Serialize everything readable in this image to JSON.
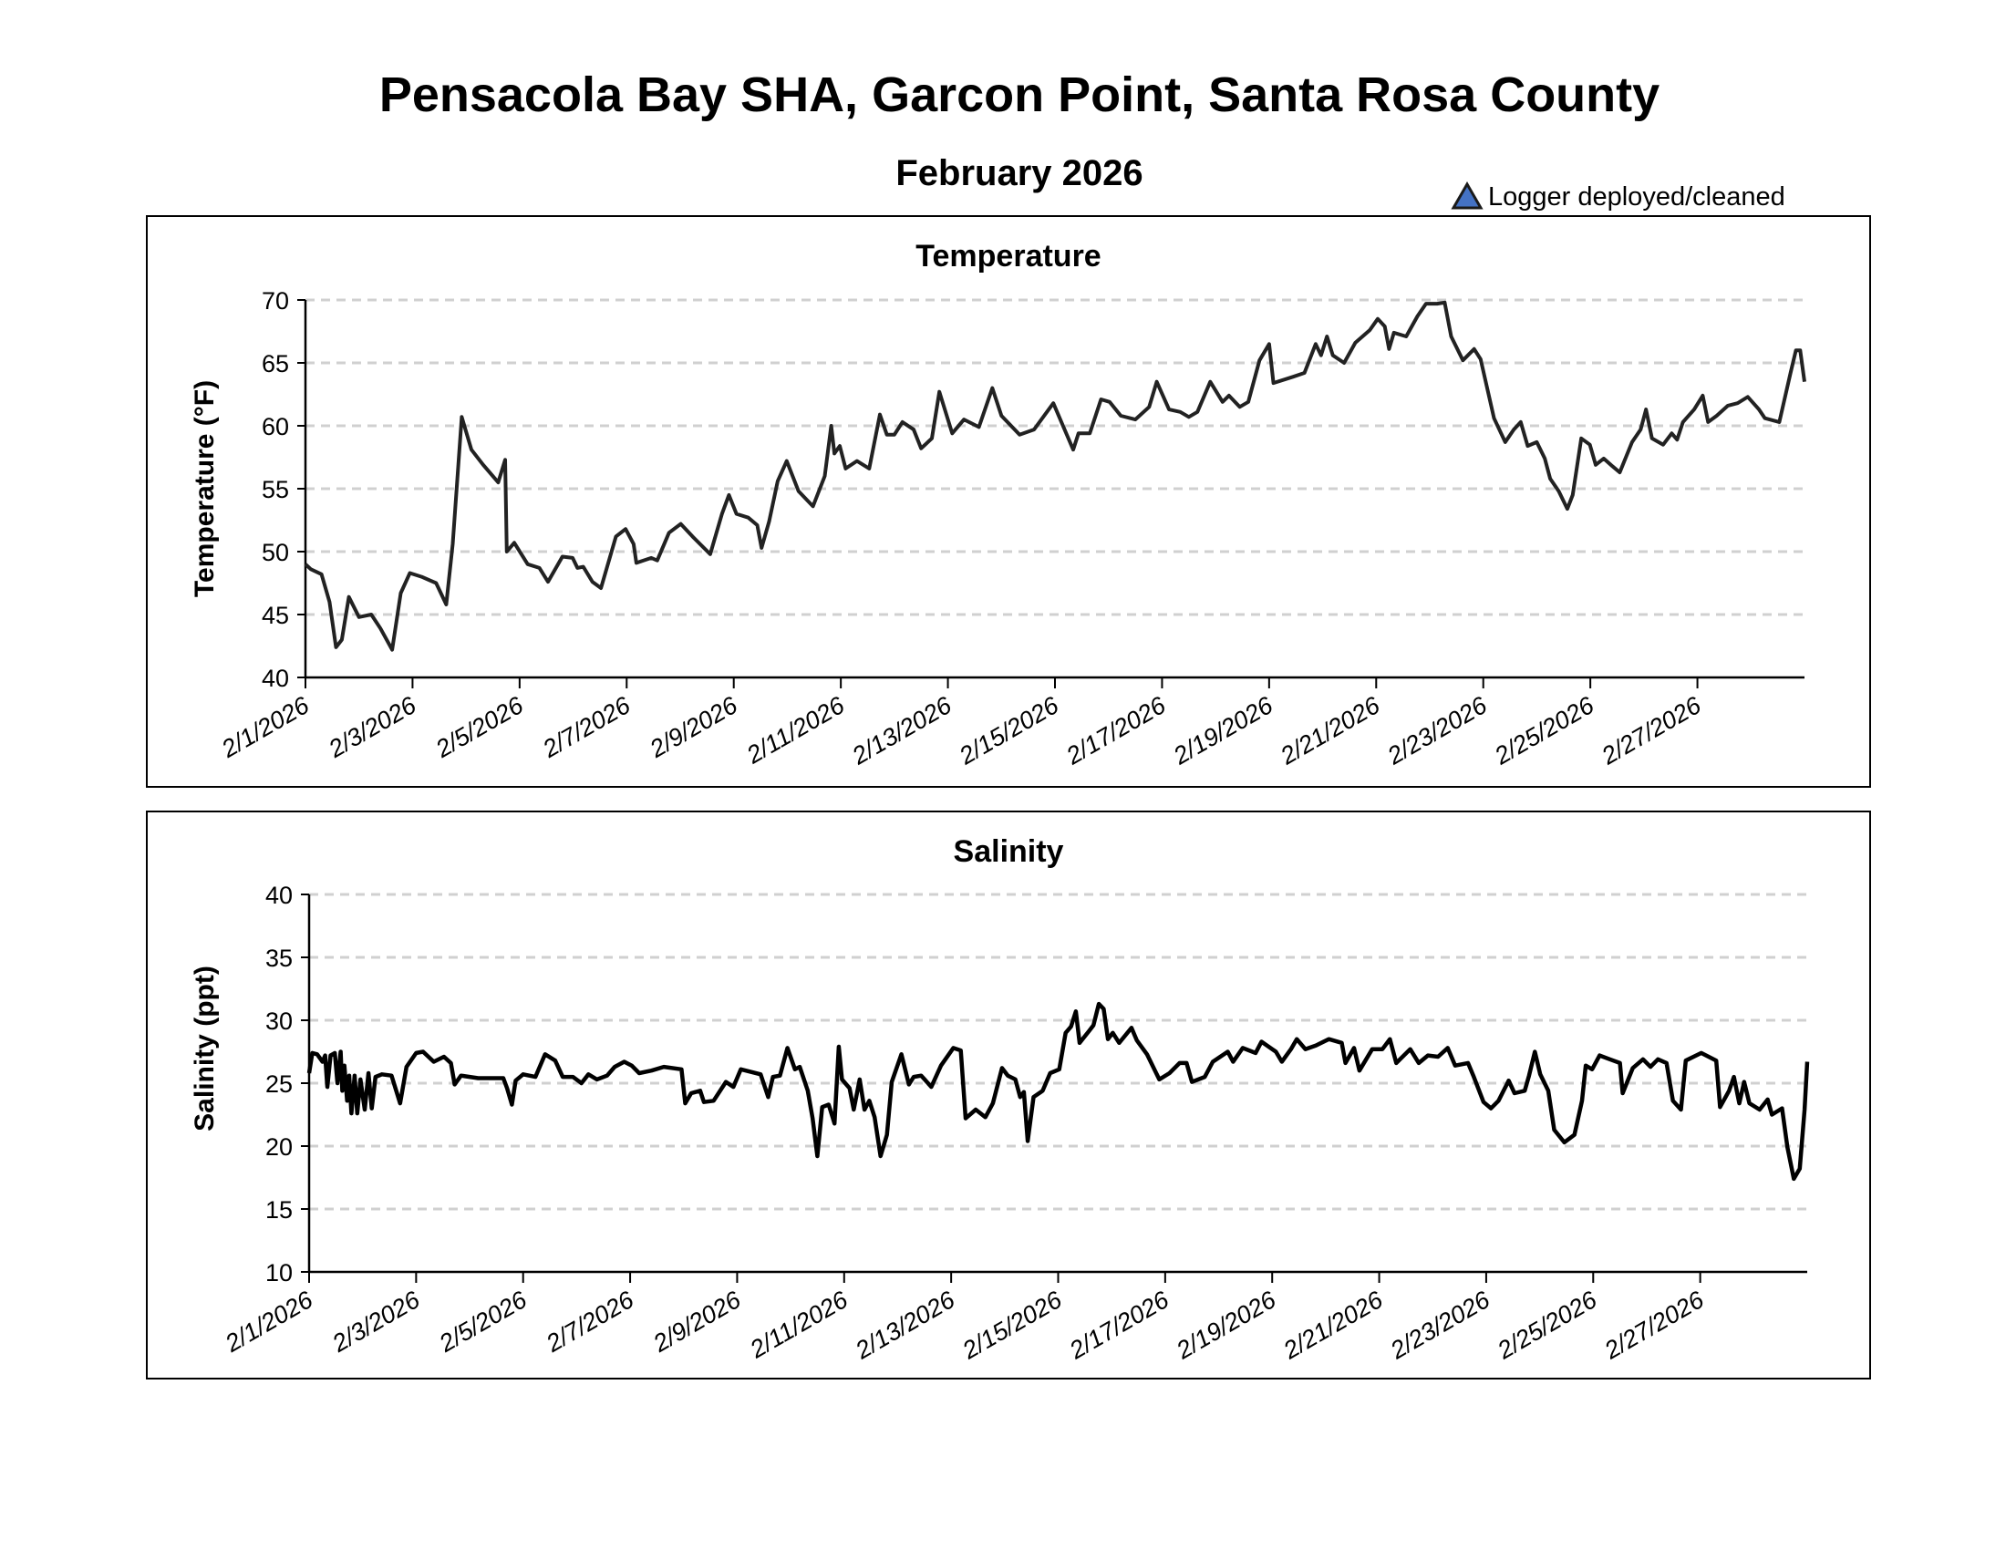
{
  "title": "Pensacola Bay SHA, Garcon Point, Santa Rosa County",
  "subtitle": "February 2026",
  "legend": {
    "label": "Logger deployed/cleaned",
    "marker_color": "#4472C4",
    "icon": "triangle-marker"
  },
  "colors": {
    "line": "#222222",
    "salinity_line": "#000000",
    "grid": "#d0d0d0"
  },
  "chart_data": [
    {
      "type": "line",
      "title": "Temperature",
      "xlabel": "",
      "ylabel": "Temperature (°F)",
      "ylim": [
        40,
        70
      ],
      "yticks": [
        40,
        45,
        50,
        55,
        60,
        65,
        70
      ],
      "xlim_days_since_2_1": [
        0,
        28
      ],
      "xtick_labels": [
        "2/1/2026",
        "2/3/2026",
        "2/5/2026",
        "2/7/2026",
        "2/9/2026",
        "2/11/2026",
        "2/13/2026",
        "2/15/2026",
        "2/17/2026",
        "2/19/2026",
        "2/21/2026",
        "2/23/2026",
        "2/25/2026",
        "2/27/2026"
      ],
      "grid": "horizontal dashed",
      "x": [
        0,
        0.1,
        0.3,
        0.45,
        0.57,
        0.68,
        0.81,
        1.0,
        1.23,
        1.4,
        1.62,
        1.78,
        1.95,
        2.17,
        2.44,
        2.63,
        2.75,
        2.92,
        3.1,
        3.32,
        3.6,
        3.73,
        3.76,
        3.9,
        4.15,
        4.37,
        4.53,
        4.8,
        4.99,
        5.08,
        5.19,
        5.36,
        5.52,
        5.8,
        5.98,
        6.13,
        6.18,
        6.46,
        6.57,
        6.79,
        7.01,
        7.23,
        7.56,
        7.78,
        7.91,
        8.05,
        8.27,
        8.44,
        8.52,
        8.66,
        8.82,
        8.99,
        9.21,
        9.48,
        9.7,
        9.82,
        9.88,
        9.98,
        10.09,
        10.3,
        10.53,
        10.73,
        10.86,
        11.0,
        11.15,
        11.36,
        11.5,
        11.7,
        11.84,
        12.08,
        12.3,
        12.58,
        12.83,
        13.0,
        13.34,
        13.61,
        13.97,
        14.23,
        14.34,
        14.44,
        14.65,
        14.86,
        15.02,
        15.23,
        15.5,
        15.76,
        15.9,
        16.13,
        16.34,
        16.5,
        16.66,
        16.9,
        17.13,
        17.25,
        17.45,
        17.61,
        17.82,
        18.0,
        18.08,
        18.45,
        18.66,
        18.87,
        18.97,
        19.08,
        19.19,
        19.4,
        19.61,
        19.88,
        20.03,
        20.16,
        20.24,
        20.33,
        20.56,
        20.77,
        20.93,
        21.14,
        21.28,
        21.4,
        21.62,
        21.83,
        21.95,
        22.2,
        22.41,
        22.57,
        22.7,
        22.83,
        23.0,
        23.15,
        23.25,
        23.41,
        23.57,
        23.67,
        23.83,
        23.99,
        24.1,
        24.25,
        24.41,
        24.55,
        24.78,
        24.94,
        25.04,
        25.15,
        25.36,
        25.52,
        25.62,
        25.73,
        25.94,
        26.1,
        26.2,
        26.36,
        26.57,
        26.75,
        26.94,
        27.15,
        27.26,
        27.53,
        27.74,
        27.84,
        27.92,
        28.0
      ],
      "values": [
        49,
        48.6,
        48.2,
        46,
        42.4,
        43,
        46.4,
        44.8,
        45,
        43.9,
        42.2,
        46.7,
        48.3,
        48,
        47.5,
        45.8,
        50.6,
        60.7,
        58.1,
        56.9,
        55.5,
        57.3,
        50,
        50.7,
        49,
        48.7,
        47.6,
        49.6,
        49.5,
        48.7,
        48.8,
        47.6,
        47.1,
        51.2,
        51.8,
        50.6,
        49.1,
        49.5,
        49.3,
        51.5,
        52.2,
        51.2,
        49.8,
        53,
        54.5,
        53,
        52.7,
        52.1,
        50.3,
        52.4,
        55.6,
        57.2,
        54.8,
        53.6,
        56,
        60,
        57.8,
        58.4,
        56.6,
        57.2,
        56.6,
        60.9,
        59.3,
        59.3,
        60.3,
        59.7,
        58.2,
        59,
        62.7,
        59.4,
        60.5,
        59.9,
        63,
        60.8,
        59.3,
        59.7,
        61.8,
        59.2,
        58.1,
        59.4,
        59.4,
        62.1,
        61.9,
        60.8,
        60.5,
        61.5,
        63.5,
        61.3,
        61.1,
        60.7,
        61.1,
        63.5,
        61.9,
        62.4,
        61.5,
        61.9,
        65.2,
        66.5,
        63.4,
        63.9,
        64.2,
        66.5,
        65.6,
        67.1,
        65.6,
        65,
        66.6,
        67.6,
        68.5,
        67.9,
        66.1,
        67.4,
        67.1,
        68.7,
        69.7,
        69.7,
        69.8,
        67.1,
        65.2,
        66.1,
        65.3,
        60.6,
        58.7,
        59.7,
        60.3,
        58.4,
        58.7,
        57.4,
        55.8,
        54.8,
        53.4,
        54.5,
        59,
        58.5,
        56.9,
        57.4,
        56.8,
        56.3,
        58.7,
        59.7,
        61.3,
        59,
        58.5,
        59.4,
        58.9,
        60.3,
        61.3,
        62.4,
        60.3,
        60.8,
        61.6,
        61.8,
        62.3,
        61.3,
        60.6,
        60.3,
        64.2,
        66,
        66,
        63.5
      ]
    },
    {
      "type": "line",
      "title": "Salinity",
      "xlabel": "",
      "ylabel": "Salinity (ppt)",
      "ylim": [
        10,
        40
      ],
      "yticks": [
        10,
        15,
        20,
        25,
        30,
        35,
        40
      ],
      "xlim_days_since_2_1": [
        0,
        28
      ],
      "xtick_labels": [
        "2/1/2026",
        "2/3/2026",
        "2/5/2026",
        "2/7/2026",
        "2/9/2026",
        "2/11/2026",
        "2/13/2026",
        "2/15/2026",
        "2/17/2026",
        "2/19/2026",
        "2/21/2026",
        "2/23/2026",
        "2/25/2026",
        "2/27/2026"
      ],
      "grid": "horizontal dashed",
      "x": [
        0,
        0.06,
        0.15,
        0.25,
        0.3,
        0.34,
        0.4,
        0.48,
        0.53,
        0.59,
        0.62,
        0.66,
        0.71,
        0.75,
        0.79,
        0.85,
        0.9,
        0.96,
        1.04,
        1.11,
        1.17,
        1.24,
        1.36,
        1.54,
        1.7,
        1.82,
        2.0,
        2.13,
        2.33,
        2.52,
        2.65,
        2.72,
        2.84,
        3.16,
        3.63,
        3.7,
        3.79,
        3.86,
        4.0,
        4.23,
        4.41,
        4.6,
        4.74,
        4.93,
        5.09,
        5.22,
        5.38,
        5.57,
        5.71,
        5.89,
        6.03,
        6.17,
        6.4,
        6.63,
        6.96,
        7.03,
        7.14,
        7.31,
        7.38,
        7.56,
        7.79,
        7.93,
        8.07,
        8.44,
        8.58,
        8.67,
        8.8,
        8.94,
        9.08,
        9.17,
        9.32,
        9.41,
        9.5,
        9.59,
        9.71,
        9.82,
        9.9,
        9.96,
        10.1,
        10.18,
        10.29,
        10.38,
        10.47,
        10.57,
        10.68,
        10.8,
        10.89,
        11.07,
        11.21,
        11.3,
        11.44,
        11.63,
        11.81,
        12.04,
        12.18,
        12.27,
        12.46,
        12.64,
        12.78,
        12.95,
        13.06,
        13.2,
        13.29,
        13.36,
        13.43,
        13.54,
        13.71,
        13.85,
        14.02,
        14.14,
        14.24,
        14.33,
        14.4,
        14.57,
        14.66,
        14.76,
        14.85,
        14.93,
        15.02,
        15.14,
        15.37,
        15.47,
        15.66,
        15.89,
        16.08,
        16.27,
        16.4,
        16.5,
        16.74,
        16.89,
        17.17,
        17.27,
        17.45,
        17.69,
        17.8,
        18.07,
        18.18,
        18.35,
        18.46,
        18.62,
        18.82,
        19.06,
        19.3,
        19.37,
        19.53,
        19.63,
        19.87,
        20.06,
        20.2,
        20.32,
        20.58,
        20.74,
        20.91,
        21.1,
        21.28,
        21.42,
        21.66,
        21.76,
        21.95,
        22.09,
        22.23,
        22.42,
        22.53,
        22.72,
        22.8,
        22.91,
        23.01,
        23.16,
        23.27,
        23.46,
        23.65,
        23.79,
        23.86,
        23.98,
        24.12,
        24.31,
        24.5,
        24.55,
        24.74,
        24.93,
        25.07,
        25.21,
        25.37,
        25.49,
        25.64,
        25.73,
        26.02,
        26.3,
        26.37,
        26.54,
        26.63,
        26.73,
        26.82,
        26.92,
        27.11,
        27.26,
        27.34,
        27.53,
        27.63,
        27.75,
        27.86,
        27.95,
        28.0
      ],
      "values": [
        25.8,
        27.4,
        27.3,
        26.7,
        27.2,
        24.7,
        27.2,
        27.4,
        25,
        27.5,
        24.4,
        26.4,
        23.6,
        25.6,
        22.6,
        25.6,
        22.6,
        25.3,
        22.9,
        25.8,
        23,
        25.5,
        25.7,
        25.6,
        23.4,
        26.3,
        27.4,
        27.5,
        26.7,
        27.1,
        26.6,
        24.9,
        25.6,
        25.4,
        25.4,
        24.6,
        23.3,
        25.2,
        25.7,
        25.5,
        27.3,
        26.8,
        25.5,
        25.5,
        25,
        25.7,
        25.3,
        25.6,
        26.3,
        26.7,
        26.4,
        25.8,
        26,
        26.3,
        26.1,
        23.4,
        24.2,
        24.4,
        23.5,
        23.6,
        25.1,
        24.7,
        26.1,
        25.7,
        23.9,
        25.5,
        25.6,
        27.8,
        26.1,
        26.3,
        24.4,
        22.2,
        19.2,
        23.1,
        23.3,
        21.8,
        27.9,
        25.3,
        24.6,
        22.9,
        25.3,
        22.9,
        23.6,
        22.3,
        19.2,
        20.9,
        25.1,
        27.3,
        24.9,
        25.5,
        25.6,
        24.7,
        26.4,
        27.8,
        27.6,
        22.2,
        22.9,
        22.3,
        23.4,
        26.2,
        25.6,
        25.3,
        23.9,
        24.3,
        20.4,
        23.9,
        24.4,
        25.8,
        26.1,
        29,
        29.5,
        30.7,
        28.2,
        29.1,
        29.6,
        31.3,
        30.9,
        28.5,
        29,
        28.2,
        29.4,
        28.4,
        27.3,
        25.3,
        25.8,
        26.6,
        26.6,
        25.1,
        25.5,
        26.7,
        27.5,
        26.7,
        27.8,
        27.4,
        28.3,
        27.5,
        26.7,
        27.7,
        28.5,
        27.7,
        28,
        28.5,
        28.2,
        26.6,
        27.8,
        26,
        27.7,
        27.7,
        28.5,
        26.6,
        27.7,
        26.6,
        27.2,
        27.1,
        27.8,
        26.4,
        26.6,
        25.6,
        23.5,
        23,
        23.6,
        25.2,
        24.2,
        24.4,
        25.6,
        27.5,
        25.7,
        24.4,
        21.3,
        20.3,
        20.9,
        23.6,
        26.4,
        26.1,
        27.2,
        26.9,
        26.6,
        24.2,
        26.2,
        26.9,
        26.3,
        26.9,
        26.6,
        23.6,
        22.9,
        26.8,
        27.4,
        26.8,
        23.1,
        24.4,
        25.5,
        23.4,
        25.1,
        23.4,
        22.9,
        23.7,
        22.5,
        23,
        19.9,
        17.4,
        18.2,
        22.9,
        26.7
      ]
    }
  ]
}
